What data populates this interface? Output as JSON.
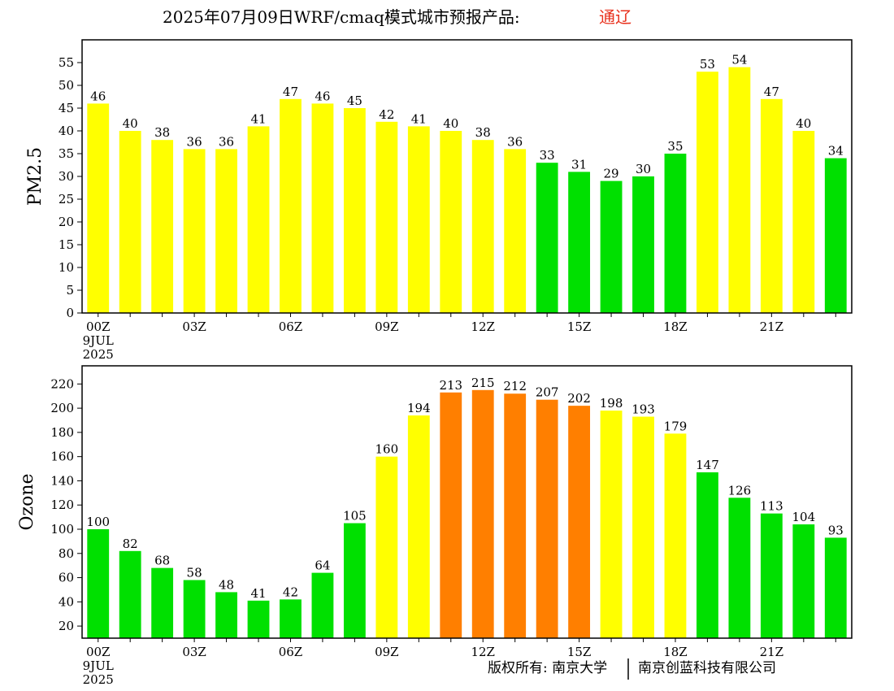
{
  "title": "2025年07月09日WRF/cmaq模式城市预报产品:",
  "status": "通辽",
  "copyright_left": "版权所有: 南京大学",
  "copyright_right": "南京创蓝科技有限公司",
  "colors": {
    "good": "#00e000",
    "moderate": "#ffff00",
    "unhealthy_sensitive": "#ff7f00",
    "frame": "#000000",
    "status_text": "#e8301c"
  },
  "chart_data": [
    {
      "type": "bar",
      "ylabel": "PM2.5",
      "ylim": [
        0,
        60
      ],
      "yticks": [
        0,
        5,
        10,
        15,
        20,
        25,
        30,
        35,
        40,
        45,
        50,
        55
      ],
      "x": [
        "00Z",
        "01Z",
        "02Z",
        "03Z",
        "04Z",
        "05Z",
        "06Z",
        "07Z",
        "08Z",
        "09Z",
        "10Z",
        "11Z",
        "12Z",
        "13Z",
        "14Z",
        "15Z",
        "16Z",
        "17Z",
        "18Z",
        "19Z",
        "20Z",
        "21Z",
        "22Z",
        "23Z"
      ],
      "xtick_labels": [
        {
          "index": 0,
          "lines": [
            "00Z",
            "9JUL",
            "2025"
          ]
        },
        {
          "index": 3,
          "lines": [
            "03Z"
          ]
        },
        {
          "index": 6,
          "lines": [
            "06Z"
          ]
        },
        {
          "index": 9,
          "lines": [
            "09Z"
          ]
        },
        {
          "index": 12,
          "lines": [
            "12Z"
          ]
        },
        {
          "index": 15,
          "lines": [
            "15Z"
          ]
        },
        {
          "index": 18,
          "lines": [
            "18Z"
          ]
        },
        {
          "index": 21,
          "lines": [
            "21Z"
          ]
        }
      ],
      "values": [
        46,
        40,
        38,
        36,
        36,
        41,
        47,
        46,
        45,
        42,
        41,
        40,
        38,
        36,
        33,
        31,
        29,
        30,
        35,
        53,
        54,
        47,
        40,
        34
      ],
      "bar_colors": [
        "#ffff00",
        "#ffff00",
        "#ffff00",
        "#ffff00",
        "#ffff00",
        "#ffff00",
        "#ffff00",
        "#ffff00",
        "#ffff00",
        "#ffff00",
        "#ffff00",
        "#ffff00",
        "#ffff00",
        "#ffff00",
        "#00e000",
        "#00e000",
        "#00e000",
        "#00e000",
        "#00e000",
        "#ffff00",
        "#ffff00",
        "#ffff00",
        "#ffff00",
        "#00e000"
      ]
    },
    {
      "type": "bar",
      "ylabel": "Ozone",
      "ylim": [
        10,
        235
      ],
      "yticks": [
        20,
        40,
        60,
        80,
        100,
        120,
        140,
        160,
        180,
        200,
        220
      ],
      "x": [
        "00Z",
        "01Z",
        "02Z",
        "03Z",
        "04Z",
        "05Z",
        "06Z",
        "07Z",
        "08Z",
        "09Z",
        "10Z",
        "11Z",
        "12Z",
        "13Z",
        "14Z",
        "15Z",
        "16Z",
        "17Z",
        "18Z",
        "19Z",
        "20Z",
        "21Z",
        "22Z",
        "23Z"
      ],
      "xtick_labels": [
        {
          "index": 0,
          "lines": [
            "00Z",
            "9JUL",
            "2025"
          ]
        },
        {
          "index": 3,
          "lines": [
            "03Z"
          ]
        },
        {
          "index": 6,
          "lines": [
            "06Z"
          ]
        },
        {
          "index": 9,
          "lines": [
            "09Z"
          ]
        },
        {
          "index": 12,
          "lines": [
            "12Z"
          ]
        },
        {
          "index": 15,
          "lines": [
            "15Z"
          ]
        },
        {
          "index": 18,
          "lines": [
            "18Z"
          ]
        },
        {
          "index": 21,
          "lines": [
            "21Z"
          ]
        }
      ],
      "values": [
        100,
        82,
        68,
        58,
        48,
        41,
        42,
        64,
        105,
        160,
        194,
        213,
        215,
        212,
        207,
        202,
        198,
        193,
        179,
        147,
        126,
        113,
        104,
        93
      ],
      "bar_colors": [
        "#00e000",
        "#00e000",
        "#00e000",
        "#00e000",
        "#00e000",
        "#00e000",
        "#00e000",
        "#00e000",
        "#00e000",
        "#ffff00",
        "#ffff00",
        "#ff7f00",
        "#ff7f00",
        "#ff7f00",
        "#ff7f00",
        "#ff7f00",
        "#ffff00",
        "#ffff00",
        "#ffff00",
        "#00e000",
        "#00e000",
        "#00e000",
        "#00e000",
        "#00e000"
      ]
    }
  ]
}
